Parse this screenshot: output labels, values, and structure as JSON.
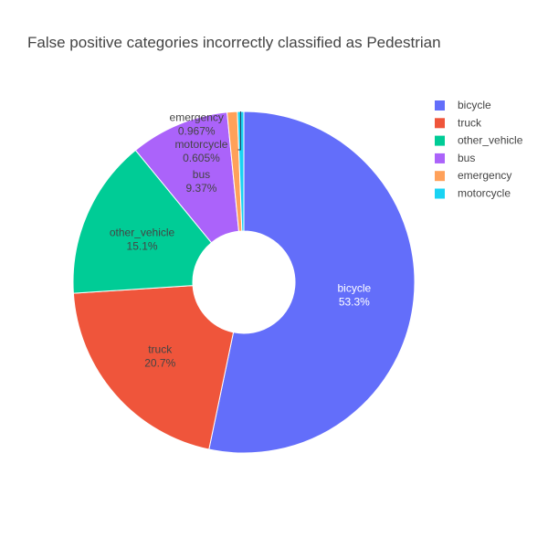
{
  "chart_data": {
    "type": "pie",
    "title": "False positive categories incorrectly classified as Pedestrian",
    "hole": true,
    "legend_position": "top-right",
    "slices": [
      {
        "label": "bicycle",
        "percent_label": "53.3%",
        "value": 53.3,
        "color": "#636efa"
      },
      {
        "label": "truck",
        "percent_label": "20.7%",
        "value": 20.7,
        "color": "#ef553b"
      },
      {
        "label": "other_vehicle",
        "percent_label": "15.1%",
        "value": 15.1,
        "color": "#00cc96"
      },
      {
        "label": "bus",
        "percent_label": "9.37%",
        "value": 9.37,
        "color": "#ab63fa"
      },
      {
        "label": "emergency",
        "percent_label": "0.967%",
        "value": 0.967,
        "color": "#ffa15a"
      },
      {
        "label": "motorcycle",
        "percent_label": "0.605%",
        "value": 0.605,
        "color": "#19d3f3"
      }
    ]
  }
}
